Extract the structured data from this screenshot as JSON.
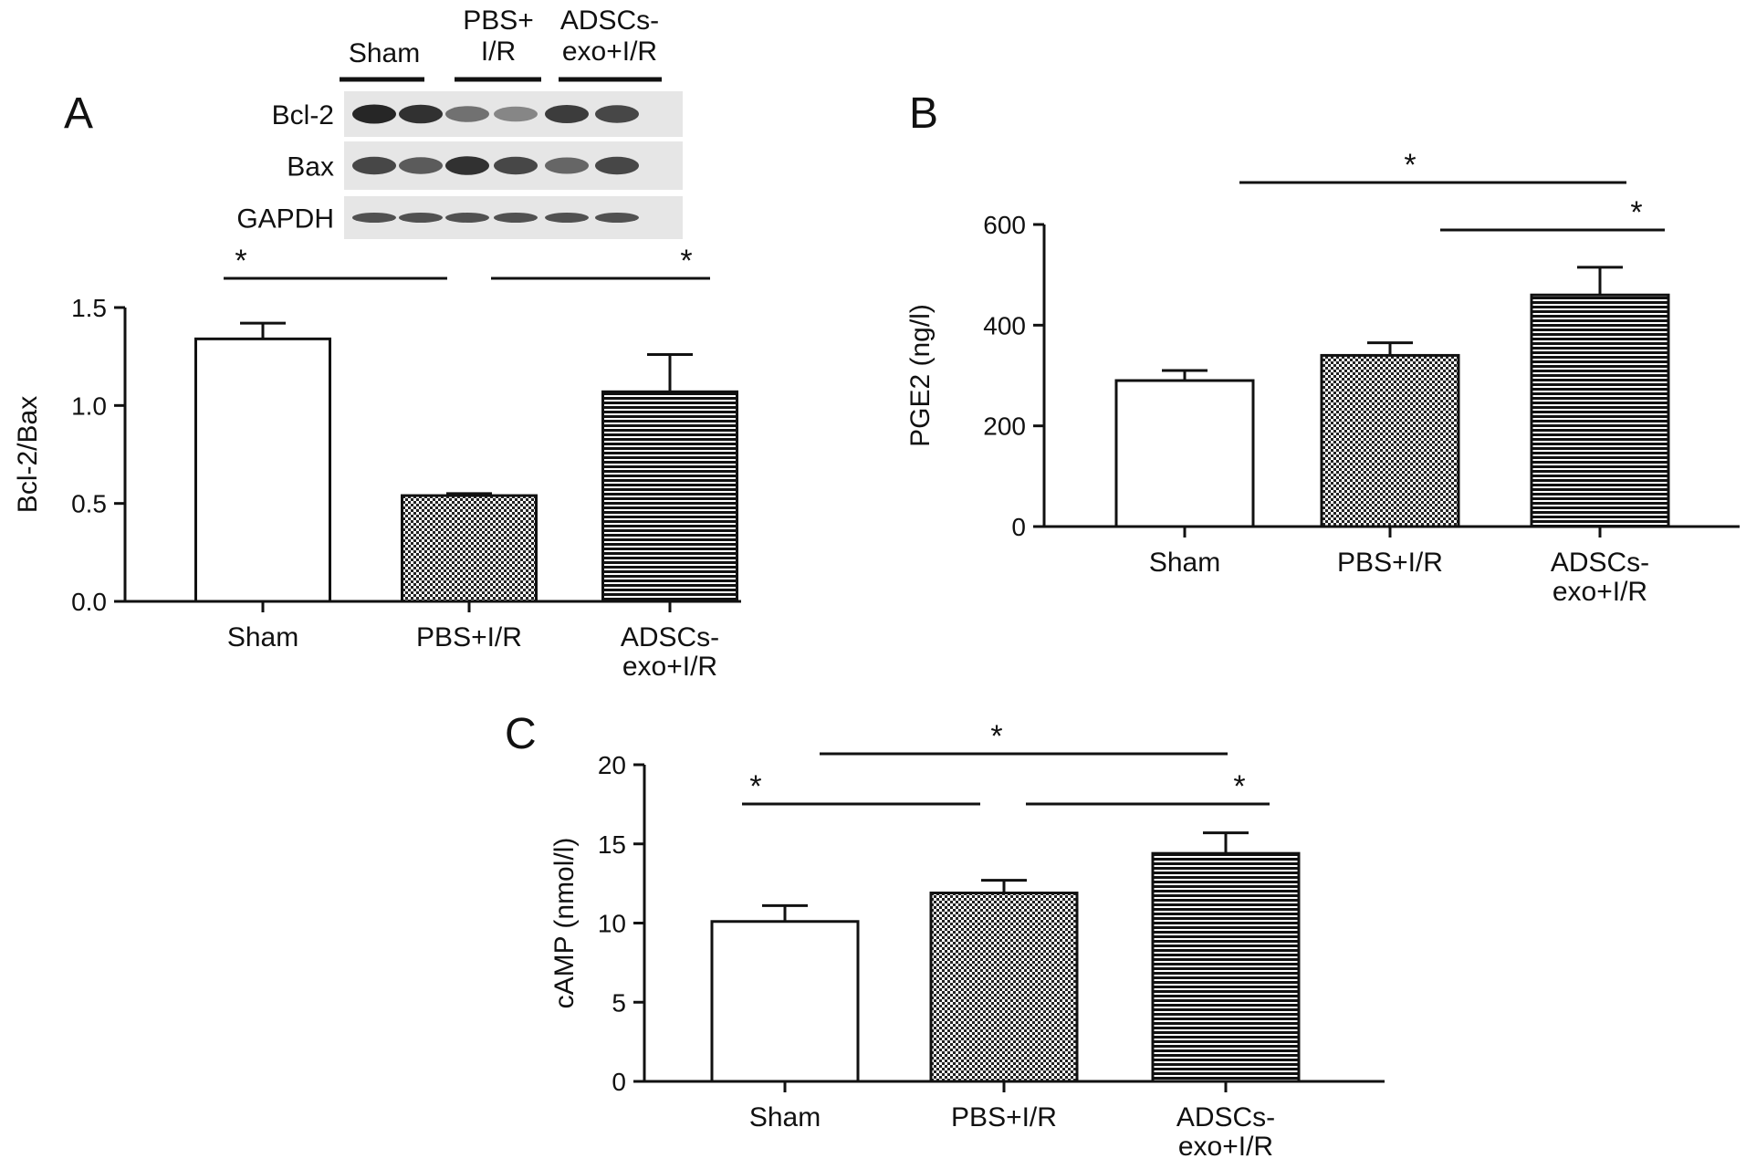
{
  "figure": {
    "panels": [
      {
        "letter": "A"
      },
      {
        "letter": "B"
      },
      {
        "letter": "C"
      }
    ]
  },
  "blot": {
    "groups": [
      "Sham",
      [
        "PBS+",
        "I/R"
      ],
      [
        "ADSCs-",
        "exo+I/R"
      ]
    ],
    "rows": [
      "Bcl-2",
      "Bax",
      "GAPDH"
    ],
    "band_intensity": {
      "Bcl-2": [
        0.9,
        0.85,
        0.55,
        0.45,
        0.8,
        0.75
      ],
      "Bax": [
        0.75,
        0.65,
        0.85,
        0.75,
        0.6,
        0.75
      ],
      "GAPDH": [
        0.7,
        0.7,
        0.7,
        0.7,
        0.7,
        0.7
      ]
    }
  },
  "chart_data": [
    {
      "panel": "A",
      "type": "bar",
      "categories": [
        [
          "Sham"
        ],
        [
          "PBS+I/R"
        ],
        [
          "ADSCs-",
          "exo+I/R"
        ]
      ],
      "values": [
        1.34,
        0.54,
        1.07
      ],
      "errors": [
        0.08,
        0.01,
        0.19
      ],
      "patterns": [
        "open",
        "checker",
        "hstripe"
      ],
      "ylabel": "Bcl-2/Bax",
      "ylim": [
        0,
        1.5
      ],
      "yticks": [
        "0.0",
        "0.5",
        "1.0",
        "1.5"
      ],
      "grid": false,
      "significance": [
        {
          "from": 0,
          "to": 1,
          "label": "*"
        },
        {
          "from": 1,
          "to": 2,
          "label": "*"
        }
      ]
    },
    {
      "panel": "B",
      "type": "bar",
      "categories": [
        [
          "Sham"
        ],
        [
          "PBS+I/R"
        ],
        [
          "ADSCs-",
          "exo+I/R"
        ]
      ],
      "values": [
        290,
        340,
        460
      ],
      "errors": [
        20,
        25,
        55
      ],
      "patterns": [
        "open",
        "checker",
        "hstripe"
      ],
      "ylabel": "PGE2 (ng/l)",
      "ylim": [
        0,
        600
      ],
      "yticks": [
        "0",
        "200",
        "400",
        "600"
      ],
      "grid": false,
      "significance": [
        {
          "from": 0,
          "to": 2,
          "label": "*"
        },
        {
          "from": 1,
          "to": 2,
          "label": "*"
        }
      ]
    },
    {
      "panel": "C",
      "type": "bar",
      "categories": [
        [
          "Sham"
        ],
        [
          "PBS+I/R"
        ],
        [
          "ADSCs-",
          "exo+I/R"
        ]
      ],
      "values": [
        10.1,
        11.9,
        14.4
      ],
      "errors": [
        1.0,
        0.8,
        1.3
      ],
      "patterns": [
        "open",
        "checker",
        "hstripe"
      ],
      "ylabel": "cAMP (nmol/l)",
      "ylim": [
        0,
        20
      ],
      "yticks": [
        "0",
        "5",
        "10",
        "15",
        "20"
      ],
      "grid": false,
      "significance": [
        {
          "from": 0,
          "to": 2,
          "label": "*"
        },
        {
          "from": 0,
          "to": 1,
          "label": "*"
        },
        {
          "from": 1,
          "to": 2,
          "label": "*"
        }
      ]
    }
  ]
}
